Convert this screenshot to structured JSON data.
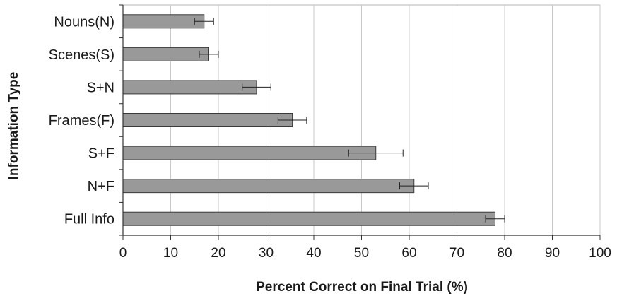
{
  "chart_data": {
    "type": "bar",
    "orientation": "horizontal",
    "categories": [
      "Nouns(N)",
      "Scenes(S)",
      "S+N",
      "Frames(F)",
      "S+F",
      "N+F",
      "Full Info"
    ],
    "values": [
      17,
      18,
      28,
      35.5,
      53,
      61,
      78
    ],
    "errors": [
      2,
      2,
      3,
      3,
      5.7,
      3,
      2
    ],
    "xlabel": "Percent Correct on Final Trial (%)",
    "ylabel": "Information Type",
    "xlim": [
      0,
      100
    ],
    "xticks": [
      "0",
      "10",
      "20",
      "30",
      "40",
      "50",
      "60",
      "70",
      "80",
      "90",
      "100"
    ],
    "grid": "vertical",
    "bar_color": "#999999"
  }
}
